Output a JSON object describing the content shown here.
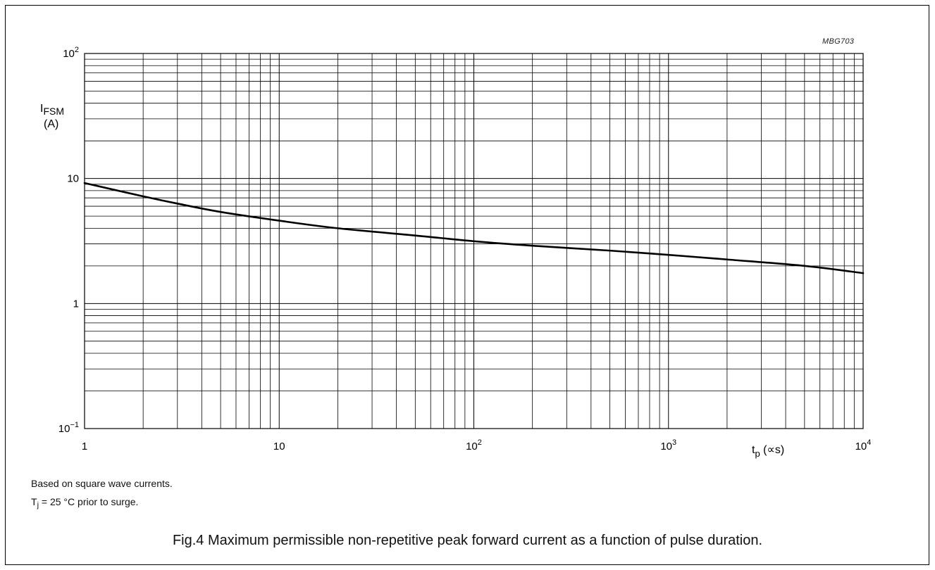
{
  "figure_code": "MBG703",
  "caption": "Fig.4  Maximum permissible non-repetitive peak forward current as a function of pulse duration.",
  "notes": {
    "line1": "Based on square wave currents.",
    "line2_main": "T",
    "line2_sub": "j",
    "line2_rest": " = 25 °C prior to surge."
  },
  "chart_data": {
    "type": "line",
    "x_scale": "log",
    "y_scale": "log",
    "xlim": [
      1,
      10000
    ],
    "ylim": [
      0.1,
      100
    ],
    "grid": true,
    "ylabel_main": "I",
    "ylabel_sub": "FSM",
    "ylabel_unit": "(A)",
    "xlabel_main": "t",
    "xlabel_sub": "p",
    "xlabel_unit": " (∝s)",
    "x_ticks": [
      {
        "value": 1,
        "label": "1"
      },
      {
        "value": 10,
        "label": "10"
      },
      {
        "value": 100,
        "label": "10",
        "exp": "2"
      },
      {
        "value": 1000,
        "label": "10",
        "exp": "3"
      },
      {
        "value": 10000,
        "label": "10",
        "exp": "4"
      }
    ],
    "y_ticks": [
      {
        "value": 0.1,
        "label": "10",
        "exp": "−1"
      },
      {
        "value": 1,
        "label": "1"
      },
      {
        "value": 10,
        "label": "10"
      },
      {
        "value": 100,
        "label": "10",
        "exp": "2"
      }
    ],
    "series": [
      {
        "x": [
          1,
          2,
          3,
          5,
          10,
          20,
          50,
          100,
          200,
          500,
          1000,
          2000,
          5000,
          10000
        ],
        "y": [
          9.2,
          7.2,
          6.3,
          5.4,
          4.6,
          4.0,
          3.5,
          3.15,
          2.9,
          2.65,
          2.45,
          2.25,
          2.0,
          1.75
        ]
      }
    ]
  },
  "colors": {
    "line": "#000000",
    "grid": "#000000",
    "border": "#000000"
  }
}
